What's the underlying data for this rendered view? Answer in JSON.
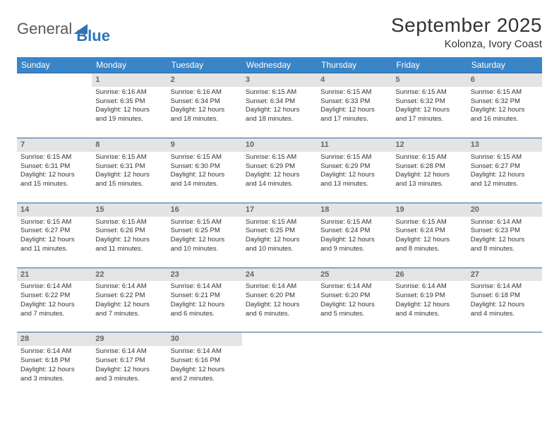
{
  "logo": {
    "text1": "General",
    "text2": "Blue",
    "shape_color": "#2d74b6"
  },
  "title": "September 2025",
  "location": "Kolonza, Ivory Coast",
  "colors": {
    "header_bg": "#3a85c7",
    "header_text": "#ffffff",
    "daynum_bg": "#e4e4e4",
    "daynum_text": "#666666",
    "rule": "#2a6aa0",
    "body_text": "#333333"
  },
  "fonts": {
    "title_size": 28,
    "location_size": 15,
    "dayhead_size": 12,
    "daynum_size": 11,
    "cell_size": 9.5
  },
  "day_headers": [
    "Sunday",
    "Monday",
    "Tuesday",
    "Wednesday",
    "Thursday",
    "Friday",
    "Saturday"
  ],
  "weeks": [
    [
      null,
      {
        "n": "1",
        "sunrise": "Sunrise: 6:16 AM",
        "sunset": "Sunset: 6:35 PM",
        "day1": "Daylight: 12 hours",
        "day2": "and 19 minutes."
      },
      {
        "n": "2",
        "sunrise": "Sunrise: 6:16 AM",
        "sunset": "Sunset: 6:34 PM",
        "day1": "Daylight: 12 hours",
        "day2": "and 18 minutes."
      },
      {
        "n": "3",
        "sunrise": "Sunrise: 6:15 AM",
        "sunset": "Sunset: 6:34 PM",
        "day1": "Daylight: 12 hours",
        "day2": "and 18 minutes."
      },
      {
        "n": "4",
        "sunrise": "Sunrise: 6:15 AM",
        "sunset": "Sunset: 6:33 PM",
        "day1": "Daylight: 12 hours",
        "day2": "and 17 minutes."
      },
      {
        "n": "5",
        "sunrise": "Sunrise: 6:15 AM",
        "sunset": "Sunset: 6:32 PM",
        "day1": "Daylight: 12 hours",
        "day2": "and 17 minutes."
      },
      {
        "n": "6",
        "sunrise": "Sunrise: 6:15 AM",
        "sunset": "Sunset: 6:32 PM",
        "day1": "Daylight: 12 hours",
        "day2": "and 16 minutes."
      }
    ],
    [
      {
        "n": "7",
        "sunrise": "Sunrise: 6:15 AM",
        "sunset": "Sunset: 6:31 PM",
        "day1": "Daylight: 12 hours",
        "day2": "and 15 minutes."
      },
      {
        "n": "8",
        "sunrise": "Sunrise: 6:15 AM",
        "sunset": "Sunset: 6:31 PM",
        "day1": "Daylight: 12 hours",
        "day2": "and 15 minutes."
      },
      {
        "n": "9",
        "sunrise": "Sunrise: 6:15 AM",
        "sunset": "Sunset: 6:30 PM",
        "day1": "Daylight: 12 hours",
        "day2": "and 14 minutes."
      },
      {
        "n": "10",
        "sunrise": "Sunrise: 6:15 AM",
        "sunset": "Sunset: 6:29 PM",
        "day1": "Daylight: 12 hours",
        "day2": "and 14 minutes."
      },
      {
        "n": "11",
        "sunrise": "Sunrise: 6:15 AM",
        "sunset": "Sunset: 6:29 PM",
        "day1": "Daylight: 12 hours",
        "day2": "and 13 minutes."
      },
      {
        "n": "12",
        "sunrise": "Sunrise: 6:15 AM",
        "sunset": "Sunset: 6:28 PM",
        "day1": "Daylight: 12 hours",
        "day2": "and 13 minutes."
      },
      {
        "n": "13",
        "sunrise": "Sunrise: 6:15 AM",
        "sunset": "Sunset: 6:27 PM",
        "day1": "Daylight: 12 hours",
        "day2": "and 12 minutes."
      }
    ],
    [
      {
        "n": "14",
        "sunrise": "Sunrise: 6:15 AM",
        "sunset": "Sunset: 6:27 PM",
        "day1": "Daylight: 12 hours",
        "day2": "and 11 minutes."
      },
      {
        "n": "15",
        "sunrise": "Sunrise: 6:15 AM",
        "sunset": "Sunset: 6:26 PM",
        "day1": "Daylight: 12 hours",
        "day2": "and 11 minutes."
      },
      {
        "n": "16",
        "sunrise": "Sunrise: 6:15 AM",
        "sunset": "Sunset: 6:25 PM",
        "day1": "Daylight: 12 hours",
        "day2": "and 10 minutes."
      },
      {
        "n": "17",
        "sunrise": "Sunrise: 6:15 AM",
        "sunset": "Sunset: 6:25 PM",
        "day1": "Daylight: 12 hours",
        "day2": "and 10 minutes."
      },
      {
        "n": "18",
        "sunrise": "Sunrise: 6:15 AM",
        "sunset": "Sunset: 6:24 PM",
        "day1": "Daylight: 12 hours",
        "day2": "and 9 minutes."
      },
      {
        "n": "19",
        "sunrise": "Sunrise: 6:15 AM",
        "sunset": "Sunset: 6:24 PM",
        "day1": "Daylight: 12 hours",
        "day2": "and 8 minutes."
      },
      {
        "n": "20",
        "sunrise": "Sunrise: 6:14 AM",
        "sunset": "Sunset: 6:23 PM",
        "day1": "Daylight: 12 hours",
        "day2": "and 8 minutes."
      }
    ],
    [
      {
        "n": "21",
        "sunrise": "Sunrise: 6:14 AM",
        "sunset": "Sunset: 6:22 PM",
        "day1": "Daylight: 12 hours",
        "day2": "and 7 minutes."
      },
      {
        "n": "22",
        "sunrise": "Sunrise: 6:14 AM",
        "sunset": "Sunset: 6:22 PM",
        "day1": "Daylight: 12 hours",
        "day2": "and 7 minutes."
      },
      {
        "n": "23",
        "sunrise": "Sunrise: 6:14 AM",
        "sunset": "Sunset: 6:21 PM",
        "day1": "Daylight: 12 hours",
        "day2": "and 6 minutes."
      },
      {
        "n": "24",
        "sunrise": "Sunrise: 6:14 AM",
        "sunset": "Sunset: 6:20 PM",
        "day1": "Daylight: 12 hours",
        "day2": "and 6 minutes."
      },
      {
        "n": "25",
        "sunrise": "Sunrise: 6:14 AM",
        "sunset": "Sunset: 6:20 PM",
        "day1": "Daylight: 12 hours",
        "day2": "and 5 minutes."
      },
      {
        "n": "26",
        "sunrise": "Sunrise: 6:14 AM",
        "sunset": "Sunset: 6:19 PM",
        "day1": "Daylight: 12 hours",
        "day2": "and 4 minutes."
      },
      {
        "n": "27",
        "sunrise": "Sunrise: 6:14 AM",
        "sunset": "Sunset: 6:18 PM",
        "day1": "Daylight: 12 hours",
        "day2": "and 4 minutes."
      }
    ],
    [
      {
        "n": "28",
        "sunrise": "Sunrise: 6:14 AM",
        "sunset": "Sunset: 6:18 PM",
        "day1": "Daylight: 12 hours",
        "day2": "and 3 minutes."
      },
      {
        "n": "29",
        "sunrise": "Sunrise: 6:14 AM",
        "sunset": "Sunset: 6:17 PM",
        "day1": "Daylight: 12 hours",
        "day2": "and 3 minutes."
      },
      {
        "n": "30",
        "sunrise": "Sunrise: 6:14 AM",
        "sunset": "Sunset: 6:16 PM",
        "day1": "Daylight: 12 hours",
        "day2": "and 2 minutes."
      },
      null,
      null,
      null,
      null
    ]
  ]
}
